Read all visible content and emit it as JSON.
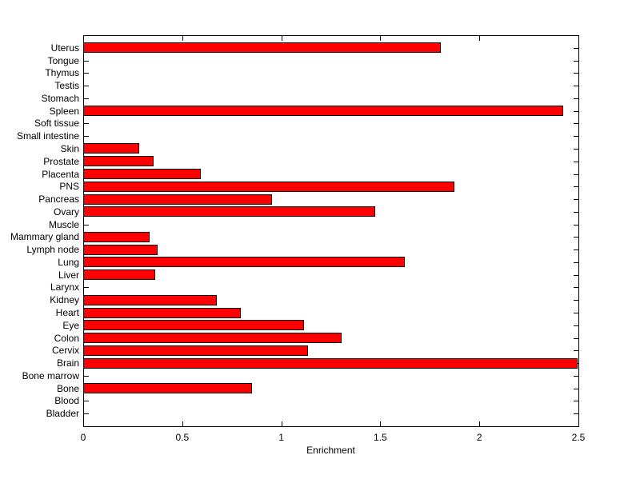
{
  "figure": {
    "background": "#ffffff"
  },
  "chart_data": {
    "type": "bar",
    "orientation": "horizontal",
    "title": "",
    "xlabel": "Enrichment",
    "ylabel": "",
    "categories": [
      "Uterus",
      "Tongue",
      "Thymus",
      "Testis",
      "Stomach",
      "Spleen",
      "Soft tissue",
      "Small intestine",
      "Skin",
      "Prostate",
      "Placenta",
      "PNS",
      "Pancreas",
      "Ovary",
      "Muscle",
      "Mammary gland",
      "Lymph node",
      "Lung",
      "Liver",
      "Larynx",
      "Kidney",
      "Heart",
      "Eye",
      "Colon",
      "Cervix",
      "Brain",
      "Bone marrow",
      "Bone",
      "Blood",
      "Bladder"
    ],
    "values": [
      1.8,
      0,
      0,
      0,
      0,
      2.42,
      0,
      0,
      0.28,
      0.35,
      0.59,
      1.87,
      0.95,
      1.47,
      0,
      0.33,
      0.37,
      1.62,
      0.36,
      0,
      0.67,
      0.79,
      1.11,
      1.3,
      1.13,
      2.49,
      0,
      0.85,
      0,
      0
    ],
    "xlim": [
      0,
      2.5
    ],
    "xticks": [
      0,
      0.5,
      1,
      1.5,
      2,
      2.5
    ],
    "xtick_labels": [
      "0",
      "0.5",
      "1",
      "1.5",
      "2",
      "2.5"
    ],
    "bar_color": "#ff0000",
    "bar_edge_color": "#000000",
    "axis_color": "#000000",
    "grid": false,
    "legend_position": "none"
  }
}
